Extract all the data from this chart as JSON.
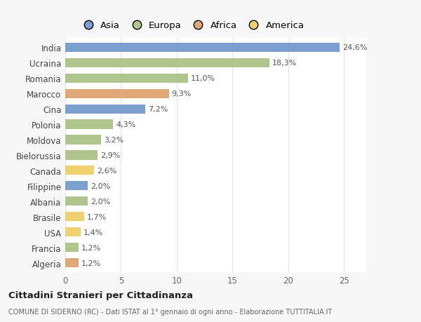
{
  "categories": [
    "India",
    "Ucraina",
    "Romania",
    "Marocco",
    "Cina",
    "Polonia",
    "Moldova",
    "Bielorussia",
    "Canada",
    "Filippine",
    "Albania",
    "Brasile",
    "USA",
    "Francia",
    "Algeria"
  ],
  "values": [
    24.6,
    18.3,
    11.0,
    9.3,
    7.2,
    4.3,
    3.2,
    2.9,
    2.6,
    2.0,
    2.0,
    1.7,
    1.4,
    1.2,
    1.2
  ],
  "labels": [
    "24,6%",
    "18,3%",
    "11,0%",
    "9,3%",
    "7,2%",
    "4,3%",
    "3,2%",
    "2,9%",
    "2,6%",
    "2,0%",
    "2,0%",
    "1,7%",
    "1,4%",
    "1,2%",
    "1,2%"
  ],
  "colors": [
    "#7b9fcf",
    "#b0c48e",
    "#b0c48e",
    "#e0a878",
    "#7b9fcf",
    "#b0c48e",
    "#b0c48e",
    "#b0c48e",
    "#f0d070",
    "#7b9fcf",
    "#b0c48e",
    "#f0d070",
    "#f0d070",
    "#b0c48e",
    "#e0a878"
  ],
  "continent_colors": {
    "Asia": "#7b9fcf",
    "Europa": "#b0c48e",
    "Africa": "#e0a878",
    "America": "#f0d070"
  },
  "legend_labels": [
    "Asia",
    "Europa",
    "Africa",
    "America"
  ],
  "xlim": [
    0,
    27
  ],
  "xticks": [
    0,
    5,
    10,
    15,
    20,
    25
  ],
  "title": "Cittadini Stranieri per Cittadinanza",
  "subtitle": "COMUNE DI SIDERNO (RC) - Dati ISTAT al 1° gennaio di ogni anno - Elaborazione TUTTITALIA.IT",
  "bg_color": "#f7f7f7",
  "plot_bg_color": "#ffffff",
  "grid_color": "#e8e8e8",
  "bar_height": 0.6,
  "label_fontsize": 8,
  "tick_fontsize": 8.5,
  "legend_fontsize": 9.5
}
